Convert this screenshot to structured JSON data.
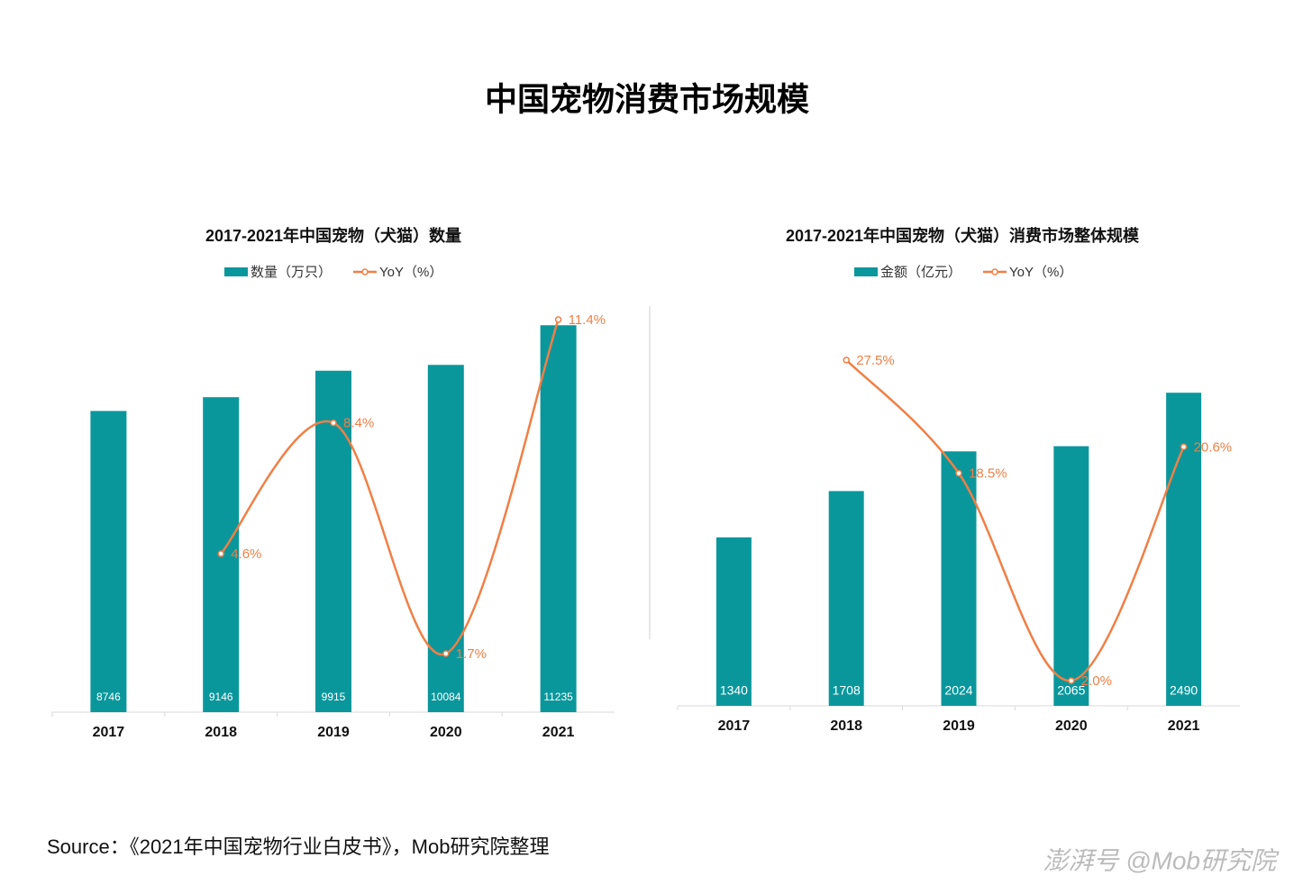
{
  "title": "中国宠物消费市场规模",
  "source": "Source：《2021年中国宠物行业白皮书》，Mob研究院整理",
  "footer": "澎湃号 @Mob研究院",
  "chart_data": [
    {
      "type": "bar",
      "title": "2017-2021年中国宠物（犬猫）数量",
      "categories": [
        "2017",
        "2018",
        "2019",
        "2020",
        "2021"
      ],
      "ylim": [
        0,
        12000
      ],
      "y2lim": [
        0,
        12
      ],
      "series": [
        {
          "name": "数量（万只）",
          "color": "#0a979c",
          "values": [
            8746,
            9146,
            9915,
            10084,
            11235
          ]
        },
        {
          "name": "YoY（%）",
          "type": "line",
          "axis": "y2",
          "color": "#f07f45",
          "values": [
            null,
            4.6,
            8.4,
            1.7,
            11.4
          ],
          "value_labels": [
            null,
            "4.6%",
            "8.4%",
            "1.7%",
            "11.4%"
          ]
        }
      ]
    },
    {
      "type": "bar",
      "title": "2017-2021年中国宠物（犬猫）消费市场整体规模",
      "categories": [
        "2017",
        "2018",
        "2019",
        "2020",
        "2021"
      ],
      "ylim": [
        0,
        3000
      ],
      "y2lim": [
        0,
        30
      ],
      "series": [
        {
          "name": "金额（亿元）",
          "color": "#0a979c",
          "values": [
            1340,
            1708,
            2024,
            2065,
            2490
          ]
        },
        {
          "name": "YoY（%）",
          "type": "line",
          "axis": "y2",
          "color": "#f07f45",
          "values": [
            null,
            27.5,
            18.5,
            2.0,
            20.6
          ],
          "value_labels": [
            null,
            "27.5%",
            "18.5%",
            "2.0%",
            "20.6%"
          ]
        }
      ]
    }
  ]
}
